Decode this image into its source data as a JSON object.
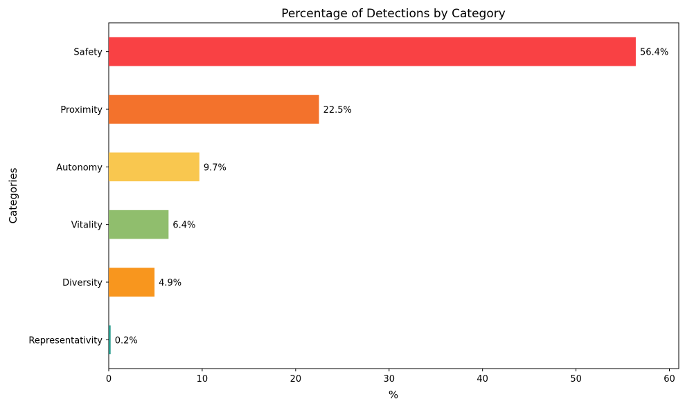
{
  "chart_data": {
    "type": "bar",
    "orientation": "horizontal",
    "title": "Percentage of Detections by Category",
    "xlabel": "%",
    "ylabel": "Categories",
    "xlim": [
      0,
      61
    ],
    "xticks": [
      0,
      10,
      20,
      30,
      40,
      50,
      60
    ],
    "categories": [
      "Representativity",
      "Diversity",
      "Vitality",
      "Autonomy",
      "Proximity",
      "Safety"
    ],
    "values": [
      0.2,
      4.9,
      6.4,
      9.7,
      22.5,
      56.4
    ],
    "data_labels": [
      "0.2%",
      "4.9%",
      "6.4%",
      "9.7%",
      "22.5%",
      "56.4%"
    ],
    "colors": [
      "#2a9d8f",
      "#f8961e",
      "#90be6d",
      "#f9c74f",
      "#f3722c",
      "#f94144"
    ],
    "grid": false,
    "legend": "none"
  }
}
